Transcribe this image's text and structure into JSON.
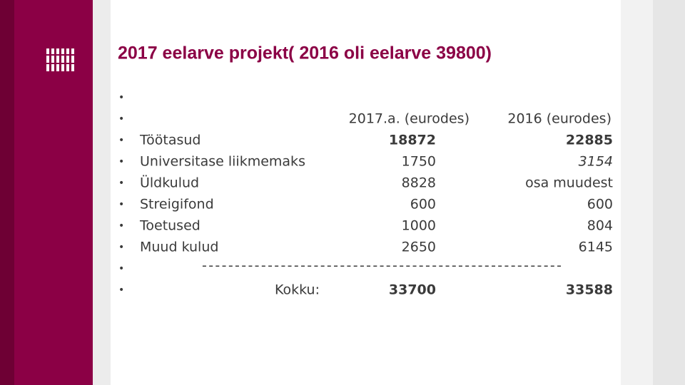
{
  "title": "2017 eelarve projekt( 2016 oli eelarve 39800)",
  "table": {
    "header": [
      "2017.a. (eurodes)",
      "2016 (eurodes)"
    ],
    "rows": [
      [
        "Töötasud",
        18872,
        22885
      ],
      [
        "Universitase liikmemaks",
        1750,
        3154
      ],
      [
        "Üldkulud",
        8828,
        "osa muudest"
      ],
      [
        "Streigifond",
        600,
        600
      ],
      [
        "Toetused",
        1000,
        804
      ],
      [
        "Muud kulud",
        2650,
        6145
      ]
    ],
    "separator": "-------------------------------------------------------",
    "total": {
      "label": "Kokku:",
      "values": [
        33700,
        33588
      ]
    }
  }
}
